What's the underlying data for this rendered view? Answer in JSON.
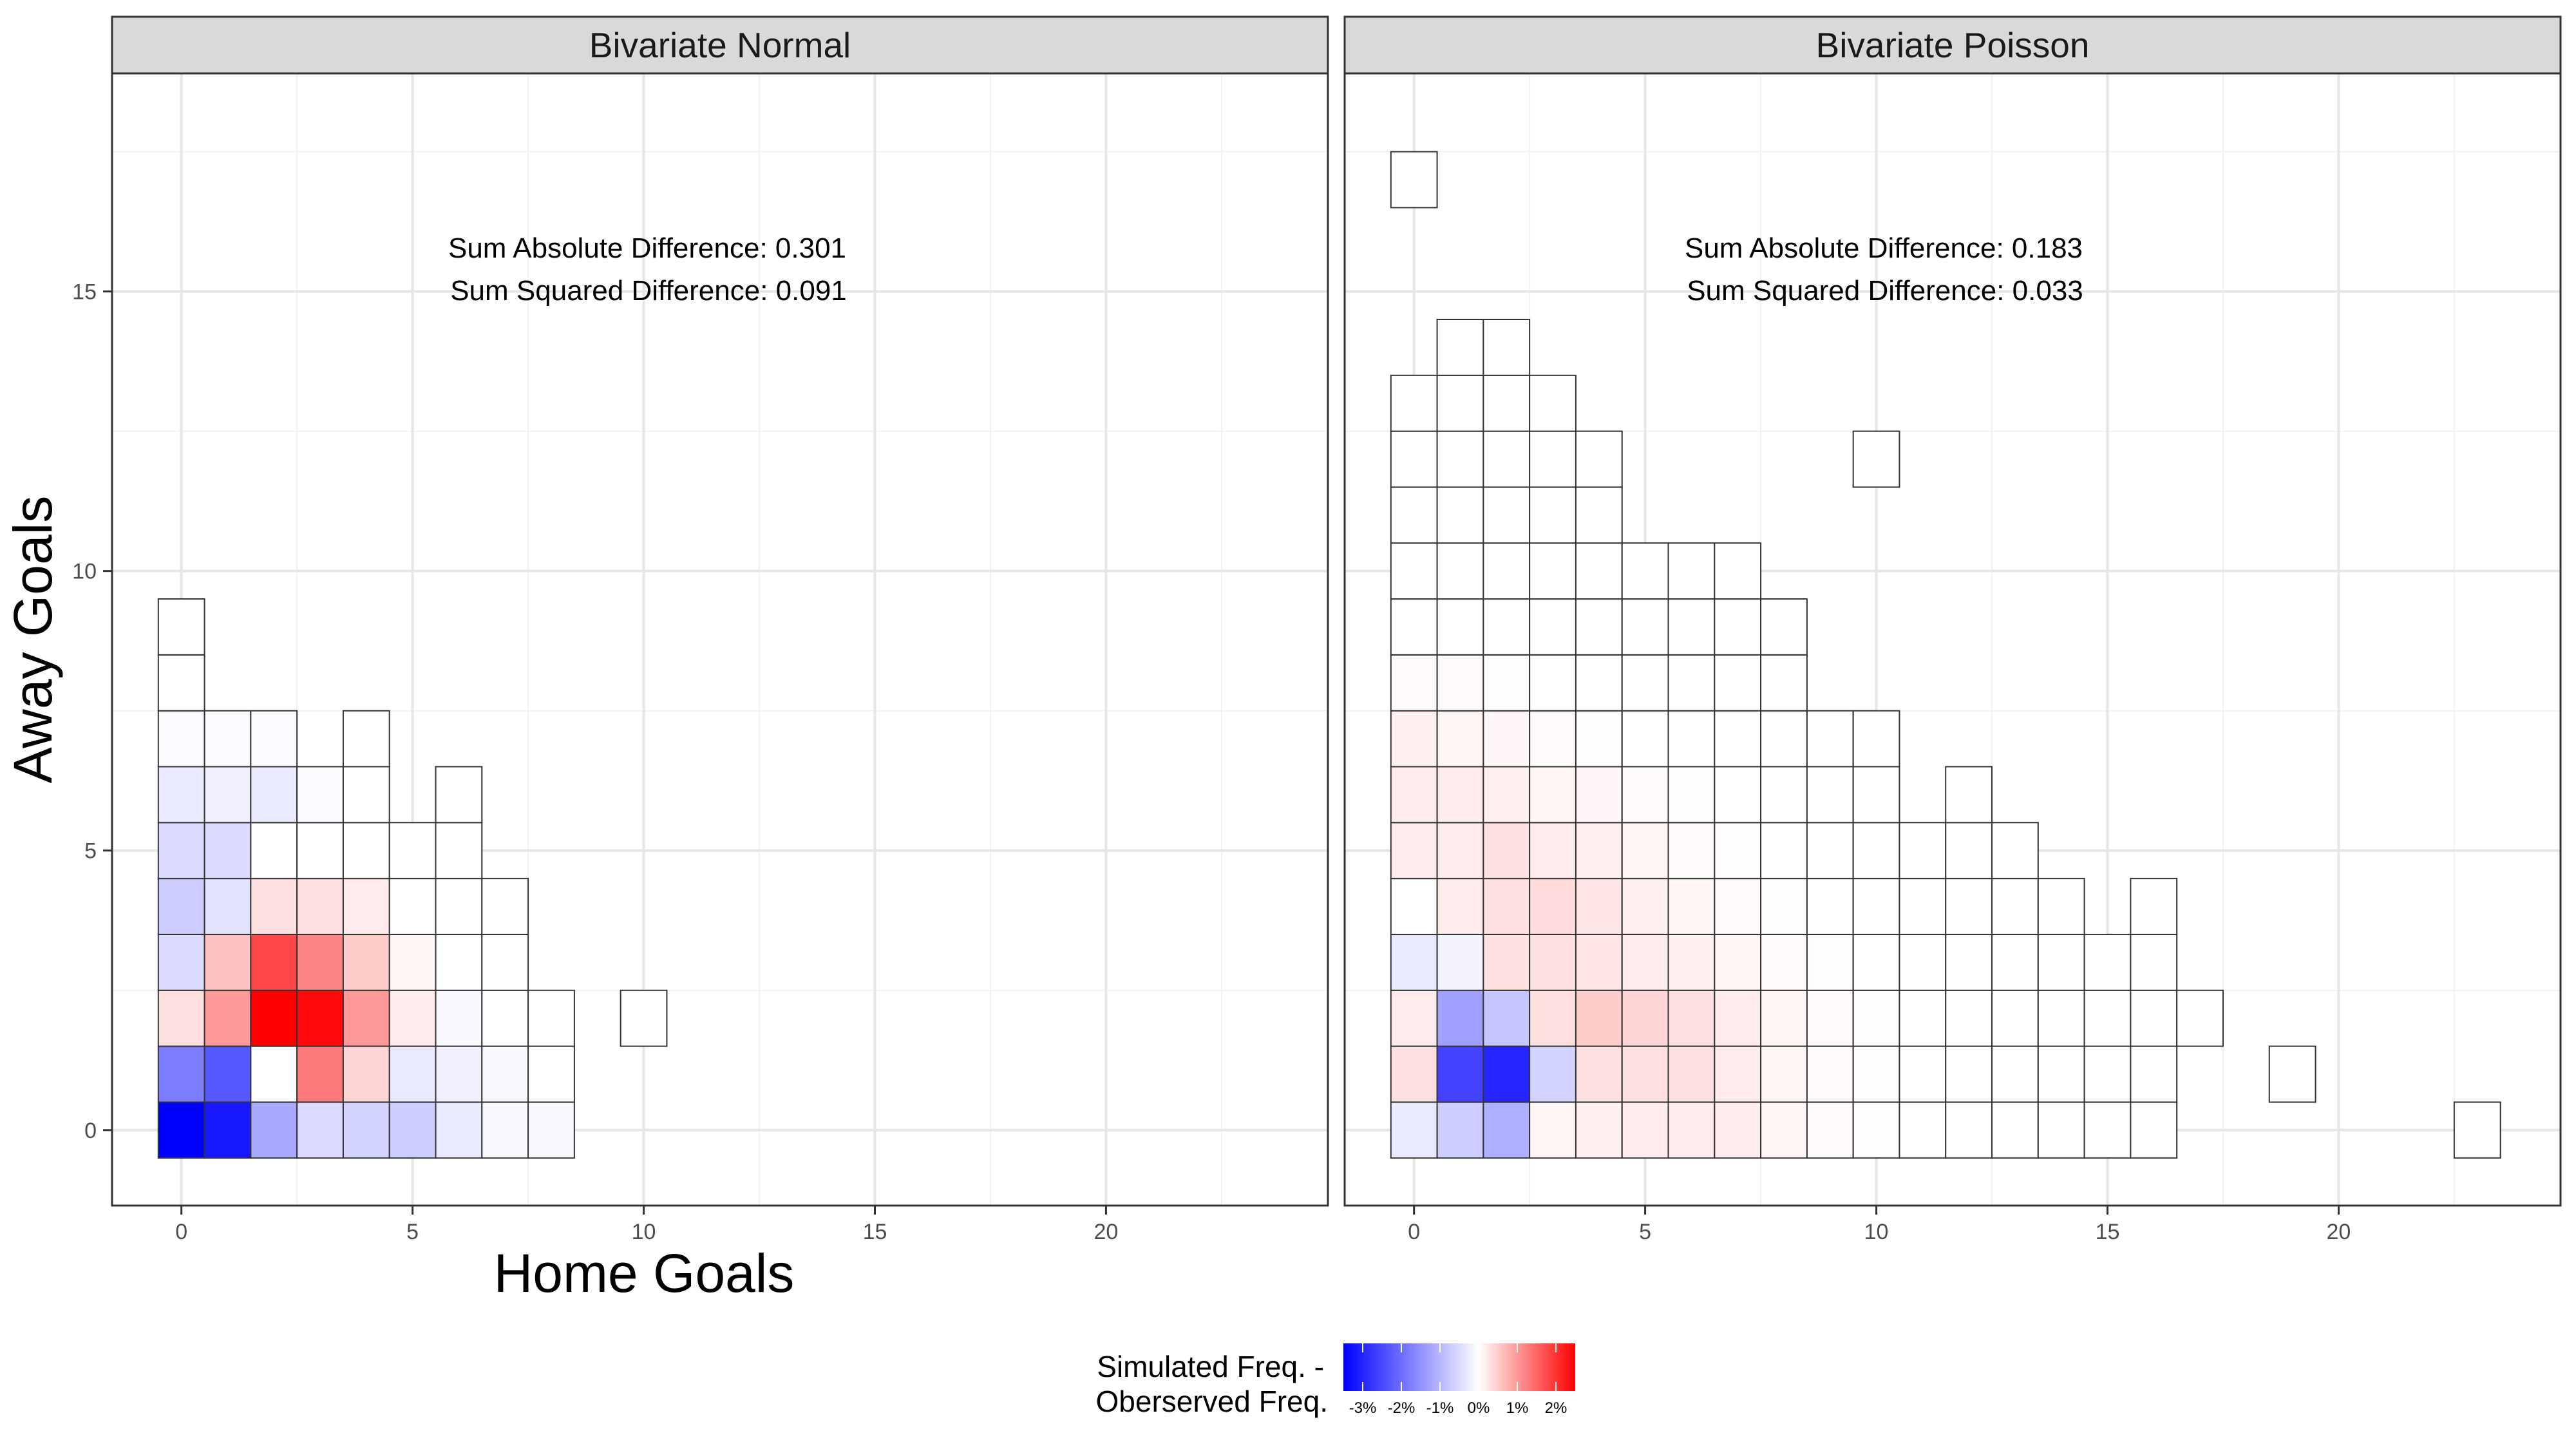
{
  "chart_data": {
    "type": "heatmap",
    "xlabel": "Home Goals",
    "ylabel": "Away Goals",
    "x_ticks": [
      "0",
      "5",
      "10",
      "15",
      "20"
    ],
    "y_ticks": [
      "0",
      "5",
      "10",
      "15"
    ],
    "xlim": [
      -1.5,
      24.8
    ],
    "ylim": [
      -1.35,
      18.9
    ],
    "grid": true,
    "legend": {
      "title_lines": [
        "Simulated Freq. -",
        "Oberserved Freq."
      ],
      "position": "bottom",
      "labels": [
        "-3%",
        "-2%",
        "-1%",
        "0%",
        "1%",
        "2%"
      ],
      "values": [
        -3,
        -2,
        -1,
        0,
        1,
        2
      ],
      "range": [
        -3.5,
        2.5
      ],
      "low_color": "#0000ff",
      "mid_color": "#ffffff",
      "high_color": "#ff0000"
    },
    "panels": [
      {
        "title": "Bivariate Normal",
        "annotations": [
          "Sum Absolute Difference: 0.301",
          "Sum Squared Difference: 0.091"
        ],
        "cells": [
          [
            0,
            0,
            -3.5
          ],
          [
            1,
            0,
            -3.2
          ],
          [
            2,
            0,
            -1.2
          ],
          [
            3,
            0,
            -0.5
          ],
          [
            4,
            0,
            -0.6
          ],
          [
            5,
            0,
            -0.7
          ],
          [
            6,
            0,
            -0.3
          ],
          [
            7,
            0,
            -0.1
          ],
          [
            8,
            0,
            -0.1
          ],
          [
            0,
            1,
            -1.8
          ],
          [
            1,
            1,
            -2.3
          ],
          [
            2,
            1,
            0
          ],
          [
            3,
            1,
            1.3
          ],
          [
            4,
            1,
            0.4
          ],
          [
            5,
            1,
            -0.3
          ],
          [
            6,
            1,
            -0.2
          ],
          [
            7,
            1,
            -0.1
          ],
          [
            8,
            1,
            0
          ],
          [
            0,
            2,
            0.3
          ],
          [
            1,
            2,
            1.0
          ],
          [
            2,
            2,
            2.5
          ],
          [
            3,
            2,
            2.4
          ],
          [
            4,
            2,
            1.0
          ],
          [
            5,
            2,
            0.2
          ],
          [
            6,
            2,
            -0.1
          ],
          [
            7,
            2,
            0
          ],
          [
            8,
            2,
            0
          ],
          [
            10,
            2,
            0
          ],
          [
            0,
            3,
            -0.5
          ],
          [
            1,
            3,
            0.6
          ],
          [
            2,
            3,
            1.8
          ],
          [
            3,
            3,
            1.2
          ],
          [
            4,
            3,
            0.5
          ],
          [
            5,
            3,
            0.1
          ],
          [
            6,
            3,
            0
          ],
          [
            7,
            3,
            0
          ],
          [
            0,
            4,
            -0.7
          ],
          [
            1,
            4,
            -0.4
          ],
          [
            2,
            4,
            0.3
          ],
          [
            3,
            4,
            0.3
          ],
          [
            4,
            4,
            0.2
          ],
          [
            5,
            4,
            0
          ],
          [
            6,
            4,
            0
          ],
          [
            7,
            4,
            0
          ],
          [
            0,
            5,
            -0.5
          ],
          [
            1,
            5,
            -0.5
          ],
          [
            2,
            5,
            0
          ],
          [
            3,
            5,
            0
          ],
          [
            4,
            5,
            0
          ],
          [
            5,
            5,
            0
          ],
          [
            6,
            5,
            0
          ],
          [
            0,
            6,
            -0.3
          ],
          [
            1,
            6,
            -0.2
          ],
          [
            2,
            6,
            -0.3
          ],
          [
            3,
            6,
            -0.05
          ],
          [
            4,
            6,
            0
          ],
          [
            6,
            6,
            0
          ],
          [
            0,
            7,
            -0.05
          ],
          [
            1,
            7,
            -0.05
          ],
          [
            2,
            7,
            -0.05
          ],
          [
            4,
            7,
            0
          ],
          [
            0,
            8,
            0
          ],
          [
            0,
            9,
            0
          ]
        ]
      },
      {
        "title": "Bivariate Poisson",
        "annotations": [
          "Sum Absolute Difference: 0.183",
          "Sum Squared Difference: 0.033"
        ],
        "cells": [
          [
            0,
            0,
            -0.3
          ],
          [
            1,
            0,
            -0.7
          ],
          [
            2,
            0,
            -1.1
          ],
          [
            3,
            0,
            0.1
          ],
          [
            4,
            0,
            0.15
          ],
          [
            5,
            0,
            0.2
          ],
          [
            6,
            0,
            0.2
          ],
          [
            7,
            0,
            0.2
          ],
          [
            8,
            0,
            0.1
          ],
          [
            9,
            0,
            0.05
          ],
          [
            10,
            0,
            0.02
          ],
          [
            11,
            0,
            0
          ],
          [
            12,
            0,
            0
          ],
          [
            13,
            0,
            0
          ],
          [
            14,
            0,
            0
          ],
          [
            15,
            0,
            0
          ],
          [
            16,
            0,
            0
          ],
          [
            23,
            0,
            0
          ],
          [
            0,
            1,
            0.3
          ],
          [
            1,
            1,
            -2.6
          ],
          [
            2,
            1,
            -3.0
          ],
          [
            3,
            1,
            -0.6
          ],
          [
            4,
            1,
            0.3
          ],
          [
            5,
            1,
            0.3
          ],
          [
            6,
            1,
            0.3
          ],
          [
            7,
            1,
            0.2
          ],
          [
            8,
            1,
            0.1
          ],
          [
            9,
            1,
            0.05
          ],
          [
            10,
            1,
            0.02
          ],
          [
            11,
            1,
            0
          ],
          [
            12,
            1,
            0
          ],
          [
            13,
            1,
            0
          ],
          [
            14,
            1,
            0
          ],
          [
            15,
            1,
            0
          ],
          [
            16,
            1,
            0
          ],
          [
            19,
            1,
            0
          ],
          [
            0,
            2,
            0.2
          ],
          [
            1,
            2,
            -1.3
          ],
          [
            2,
            2,
            -0.8
          ],
          [
            3,
            2,
            0.3
          ],
          [
            4,
            2,
            0.5
          ],
          [
            5,
            2,
            0.4
          ],
          [
            6,
            2,
            0.3
          ],
          [
            7,
            2,
            0.2
          ],
          [
            8,
            2,
            0.1
          ],
          [
            9,
            2,
            0.05
          ],
          [
            10,
            2,
            0.03
          ],
          [
            11,
            2,
            0
          ],
          [
            12,
            2,
            0
          ],
          [
            13,
            2,
            0
          ],
          [
            14,
            2,
            0
          ],
          [
            15,
            2,
            0
          ],
          [
            16,
            2,
            0
          ],
          [
            17,
            2,
            0
          ],
          [
            0,
            3,
            -0.3
          ],
          [
            1,
            3,
            -0.15
          ],
          [
            2,
            3,
            0.3
          ],
          [
            3,
            3,
            0.3
          ],
          [
            4,
            3,
            0.25
          ],
          [
            5,
            3,
            0.2
          ],
          [
            6,
            3,
            0.15
          ],
          [
            7,
            3,
            0.1
          ],
          [
            8,
            3,
            0.05
          ],
          [
            9,
            3,
            0.03
          ],
          [
            10,
            3,
            0
          ],
          [
            11,
            3,
            0
          ],
          [
            12,
            3,
            0
          ],
          [
            13,
            3,
            0
          ],
          [
            14,
            3,
            0
          ],
          [
            15,
            3,
            0
          ],
          [
            16,
            3,
            0
          ],
          [
            0,
            4,
            0
          ],
          [
            1,
            4,
            0.2
          ],
          [
            2,
            4,
            0.3
          ],
          [
            3,
            4,
            0.35
          ],
          [
            4,
            4,
            0.25
          ],
          [
            5,
            4,
            0.15
          ],
          [
            6,
            4,
            0.1
          ],
          [
            7,
            4,
            0.05
          ],
          [
            8,
            4,
            0.03
          ],
          [
            9,
            4,
            0
          ],
          [
            10,
            4,
            0
          ],
          [
            11,
            4,
            0
          ],
          [
            12,
            4,
            0
          ],
          [
            13,
            4,
            0
          ],
          [
            14,
            4,
            0
          ],
          [
            16,
            4,
            0
          ],
          [
            0,
            5,
            0.2
          ],
          [
            1,
            5,
            0.2
          ],
          [
            2,
            5,
            0.3
          ],
          [
            3,
            5,
            0.2
          ],
          [
            4,
            5,
            0.15
          ],
          [
            5,
            5,
            0.1
          ],
          [
            6,
            5,
            0.05
          ],
          [
            7,
            5,
            0.03
          ],
          [
            8,
            5,
            0
          ],
          [
            9,
            5,
            0
          ],
          [
            10,
            5,
            0
          ],
          [
            11,
            5,
            0
          ],
          [
            12,
            5,
            0
          ],
          [
            13,
            5,
            0
          ],
          [
            0,
            6,
            0.2
          ],
          [
            1,
            6,
            0.2
          ],
          [
            2,
            6,
            0.15
          ],
          [
            3,
            6,
            0.1
          ],
          [
            4,
            6,
            0.08
          ],
          [
            5,
            6,
            0.05
          ],
          [
            6,
            6,
            0.03
          ],
          [
            7,
            6,
            0
          ],
          [
            8,
            6,
            0
          ],
          [
            9,
            6,
            0
          ],
          [
            10,
            6,
            0
          ],
          [
            12,
            6,
            0
          ],
          [
            0,
            7,
            0.15
          ],
          [
            1,
            7,
            0.1
          ],
          [
            2,
            7,
            0.08
          ],
          [
            3,
            7,
            0.05
          ],
          [
            4,
            7,
            0.03
          ],
          [
            5,
            7,
            0
          ],
          [
            6,
            7,
            0
          ],
          [
            7,
            7,
            0
          ],
          [
            8,
            7,
            0
          ],
          [
            9,
            7,
            0
          ],
          [
            10,
            7,
            0
          ],
          [
            0,
            8,
            0.05
          ],
          [
            1,
            8,
            0.05
          ],
          [
            2,
            8,
            0.03
          ],
          [
            3,
            8,
            0
          ],
          [
            4,
            8,
            0
          ],
          [
            5,
            8,
            0
          ],
          [
            6,
            8,
            0
          ],
          [
            7,
            8,
            0
          ],
          [
            8,
            8,
            0
          ],
          [
            0,
            9,
            0
          ],
          [
            1,
            9,
            0
          ],
          [
            2,
            9,
            0
          ],
          [
            3,
            9,
            0
          ],
          [
            4,
            9,
            0
          ],
          [
            5,
            9,
            0
          ],
          [
            6,
            9,
            0
          ],
          [
            7,
            9,
            0
          ],
          [
            8,
            9,
            0
          ],
          [
            0,
            10,
            0
          ],
          [
            1,
            10,
            0
          ],
          [
            2,
            10,
            0
          ],
          [
            3,
            10,
            0
          ],
          [
            4,
            10,
            0
          ],
          [
            5,
            10,
            0
          ],
          [
            6,
            10,
            0
          ],
          [
            7,
            10,
            0
          ],
          [
            0,
            11,
            0
          ],
          [
            1,
            11,
            0
          ],
          [
            2,
            11,
            0
          ],
          [
            3,
            11,
            0
          ],
          [
            4,
            11,
            0
          ],
          [
            0,
            12,
            0
          ],
          [
            1,
            12,
            0
          ],
          [
            2,
            12,
            0
          ],
          [
            3,
            12,
            0
          ],
          [
            4,
            12,
            0
          ],
          [
            10,
            12,
            0
          ],
          [
            0,
            13,
            0
          ],
          [
            1,
            13,
            0
          ],
          [
            2,
            13,
            0
          ],
          [
            3,
            13,
            0
          ],
          [
            1,
            14,
            0
          ],
          [
            2,
            14,
            0
          ],
          [
            0,
            17,
            0
          ]
        ]
      }
    ]
  }
}
